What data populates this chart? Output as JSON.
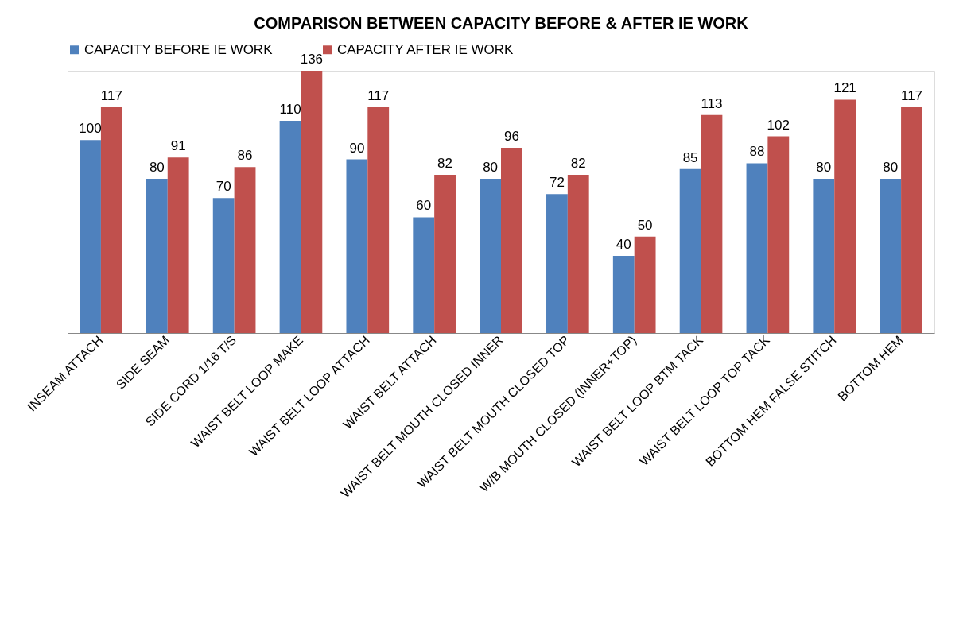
{
  "chart_data": {
    "type": "bar",
    "title": "COMPARISON BETWEEN CAPACITY BEFORE & AFTER IE WORK",
    "categories": [
      "INSEAM ATTACH",
      "SIDE SEAM",
      "SIDE CORD 1/16 T/S",
      "WAIST BELT LOOP MAKE",
      "WAIST BELT LOOP ATTACH",
      "WAIST BELT ATTACH",
      "WAIST BELT MOUTH CLOSED INNER",
      "WAIST BELT MOUTH CLOSED TOP",
      "W/B MOUTH CLOSED (INNER+TOP)",
      "WAIST BELT LOOP BTM TACK",
      "WAIST BELT LOOP TOP TACK",
      "BOTTOM HEM FALSE STITCH",
      "BOTTOM HEM"
    ],
    "series": [
      {
        "name": "CAPACITY BEFORE IE WORK",
        "color": "#4f81bd",
        "values": [
          100,
          80,
          70,
          110,
          90,
          60,
          80,
          72,
          40,
          85,
          88,
          80,
          80
        ]
      },
      {
        "name": "CAPACITY AFTER IE WORK",
        "color": "#c0504d",
        "values": [
          117,
          91,
          86,
          136,
          117,
          82,
          96,
          82,
          50,
          113,
          102,
          121,
          117
        ]
      }
    ],
    "data_labels": true,
    "legend": "top"
  }
}
